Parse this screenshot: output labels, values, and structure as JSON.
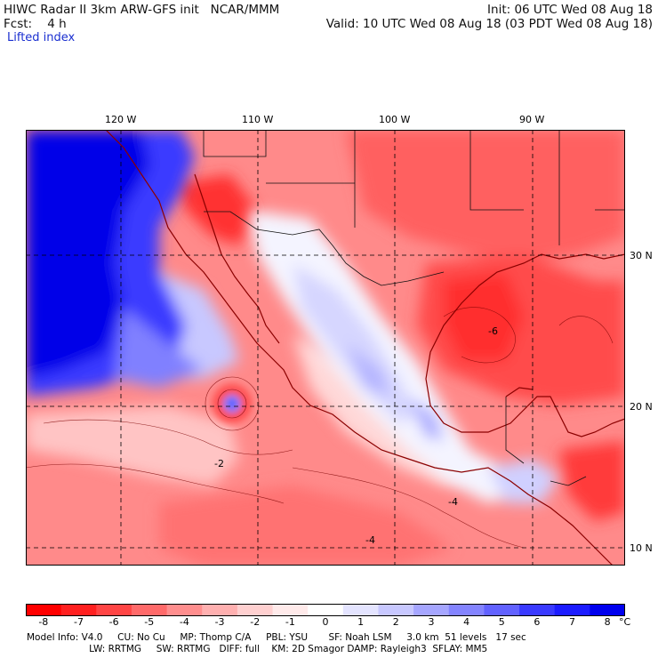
{
  "header": {
    "line1_left": "HIWC Radar II 3km ARW-GFS init   NCAR/MMM",
    "line1_right": "Init: 06 UTC Wed 08 Aug 18",
    "line2_left": "Fcst:    4 h",
    "line2_right": "Valid: 10 UTC Wed 08 Aug 18 (03 PDT Wed 08 Aug 18)",
    "field": "Lifted index"
  },
  "map": {
    "lon_labels": [
      "120 W",
      "110 W",
      "100 W",
      "90 W"
    ],
    "lat_labels": [
      "30 N",
      "20 N",
      "10 N"
    ],
    "contour_labels": [
      "-2",
      "-4",
      "-4",
      "-6"
    ]
  },
  "colorbar": {
    "unit": "°C",
    "labels": [
      "-8",
      "-7",
      "-6",
      "-5",
      "-4",
      "-3",
      "-2",
      "-1",
      "0",
      "1",
      "2",
      "3",
      "4",
      "5",
      "6",
      "7",
      "8"
    ],
    "colors": [
      "#ff0000",
      "#ff2020",
      "#ff4545",
      "#ff6a6a",
      "#ff8e8e",
      "#ffb0b0",
      "#ffd0d0",
      "#ffeaea",
      "#ffffff",
      "#e4e4ff",
      "#c8c8ff",
      "#a6a6ff",
      "#8484ff",
      "#6262ff",
      "#3a3aff",
      "#1c1cff",
      "#0000ee"
    ]
  },
  "footer": {
    "line1": "Model Info: V4.0     CU: No Cu     MP: Thomp C/A     PBL: YSU       SF: Noah LSM     3.0 km  51 levels   17 sec",
    "line2": "                     LW: RRTMG     SW: RRTMG   DIFF: full    KM: 2D Smagor DAMP: Rayleigh3  SFLAY: MM5"
  }
}
